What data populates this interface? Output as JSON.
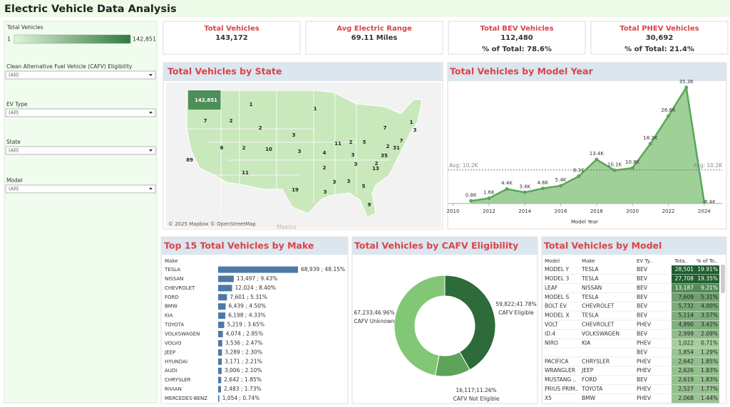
{
  "header": {
    "title": "Electric Vehicle Data Analysis"
  },
  "filters": {
    "slider": {
      "label": "Total Vehicles",
      "min": "1",
      "max": "142,851"
    },
    "dropdowns": [
      {
        "label": "Clean Alternative Fuel Vehicle (CAFV) Eligibility",
        "value": "(All)"
      },
      {
        "label": "EV Type",
        "value": "(All)"
      },
      {
        "label": "State",
        "value": "(All)"
      },
      {
        "label": "Model",
        "value": "(All)"
      }
    ]
  },
  "kpis": [
    {
      "title": "Total Vehicles",
      "value": "143,172"
    },
    {
      "title": "Avg Electric Range",
      "value": "69.11 Miles"
    },
    {
      "title": "Total BEV Vehicles",
      "value": "112,480",
      "sub": "% of Total: 78.6%"
    },
    {
      "title": "Total PHEV Vehicles",
      "value": "30,692",
      "sub": "% of Total: 21.4%"
    }
  ],
  "map": {
    "title": "Total Vehicles by State",
    "attribution": "© 2025 Mapbox © OpenStreetMap",
    "background_label": "Mexico",
    "state_labels": [
      "142,851",
      "1",
      "1",
      "7",
      "2",
      "2",
      "3",
      "7",
      "1",
      "3",
      "11",
      "2",
      "5",
      "6",
      "2",
      "10",
      "3",
      "4",
      "31",
      "35",
      "3",
      "89",
      "11",
      "3",
      "2",
      "13",
      "2",
      "19",
      "3",
      "5",
      "3",
      "3",
      "9",
      "2",
      "7"
    ]
  },
  "chart_data": [
    {
      "type": "area",
      "title": "Total Vehicles by Model Year",
      "x_label": "Model Year",
      "x": [
        2011,
        2012,
        2013,
        2014,
        2015,
        2016,
        2017,
        2018,
        2019,
        2020,
        2021,
        2022,
        2023,
        2024
      ],
      "values": [
        0.8,
        1.6,
        4.4,
        3.4,
        4.6,
        5.4,
        8.3,
        13.4,
        10.1,
        10.8,
        18.2,
        26.6,
        35.3,
        0.4
      ],
      "value_labels": [
        "0.8K",
        "1.6K",
        "4.4K",
        "3.4K",
        "4.6K",
        "5.4K",
        "8.3K",
        "13.4K",
        "10.1K",
        "10.8K",
        "18.2K",
        "26.6K",
        "35.3K",
        "0.4K"
      ],
      "color": "#5aa657",
      "xlim": [
        2009.7,
        2025
      ],
      "xticks": [
        2010,
        2012,
        2014,
        2016,
        2018,
        2020,
        2022,
        2024
      ],
      "reference_line": {
        "value": 10.2,
        "label": "Avg: 10.2K"
      }
    },
    {
      "type": "bar",
      "orientation": "horizontal",
      "title": "Top 15 Total Vehicles by Make",
      "category_label": "Make",
      "categories": [
        "TESLA",
        "NISSAN",
        "CHEVROLET",
        "FORD",
        "BMW",
        "KIA",
        "TOYOTA",
        "VOLKSWAGEN",
        "VOLVO",
        "JEEP",
        "HYUNDAI",
        "AUDI",
        "CHRYSLER",
        "RIVIAN",
        "MERCEDES-BENZ"
      ],
      "values": [
        68939,
        13497,
        12024,
        7601,
        6439,
        6198,
        5219,
        4074,
        3536,
        3289,
        3171,
        3006,
        2642,
        2483,
        1054
      ],
      "value_labels": [
        "68,939 ; 48.15%",
        "13,497 ; 9.43%",
        "12,024 ; 8.40%",
        "7,601 ; 5.31%",
        "6,439 ; 4.50%",
        "6,198 ; 4.33%",
        "5,219 ; 3.65%",
        "4,074 ; 2.85%",
        "3,536 ; 2.47%",
        "3,289 ; 2.30%",
        "3,171 ; 2.21%",
        "3,006 ; 2.10%",
        "2,642 ; 1.85%",
        "2,483 ; 1.73%",
        "1,054 ; 0.74%"
      ],
      "color": "#4e79a7"
    },
    {
      "type": "donut",
      "title": "Total Vehicles by CAFV Eligibility",
      "categories": [
        "CAFV Eligible",
        "CAFV Not Eligible",
        "CAFV Unknown"
      ],
      "values": [
        59822,
        16117,
        67233
      ],
      "value_labels": [
        "59,822;41.78%",
        "16,117;11.26%",
        "67,233;46.96%"
      ],
      "colors": [
        "#2d6b3a",
        "#5fa35a",
        "#82c775"
      ]
    }
  ],
  "table": {
    "title": "Total Vehicles by Model",
    "columns": [
      "Model",
      "Make",
      "EV Ty..",
      "Tota..",
      "% of To.."
    ],
    "rows": [
      [
        "MODEL Y",
        "TESLA",
        "BEV",
        "28,501",
        "19.91%"
      ],
      [
        "MODEL 3",
        "TESLA",
        "BEV",
        "27,708",
        "19.35%"
      ],
      [
        "LEAF",
        "NISSAN",
        "BEV",
        "13,187",
        "9.21%"
      ],
      [
        "MODEL S",
        "TESLA",
        "BEV",
        "7,609",
        "5.31%"
      ],
      [
        "BOLT EV",
        "CHEVROLET",
        "BEV",
        "5,732",
        "4.00%"
      ],
      [
        "MODEL X",
        "TESLA",
        "BEV",
        "5,114",
        "3.57%"
      ],
      [
        "VOLT",
        "CHEVROLET",
        "PHEV",
        "4,890",
        "3.42%"
      ],
      [
        "ID.4",
        "VOLKSWAGEN",
        "BEV",
        "2,999",
        "2.09%"
      ],
      [
        "NIRO",
        "KIA",
        "PHEV",
        "1,022",
        "0.71%"
      ],
      [
        null,
        null,
        "BEV",
        "1,854",
        "1.29%"
      ],
      [
        "PACIFICA",
        "CHRYSLER",
        "PHEV",
        "2,642",
        "1.85%"
      ],
      [
        "WRANGLER",
        "JEEP",
        "PHEV",
        "2,626",
        "1.83%"
      ],
      [
        "MUSTANG ..",
        "FORD",
        "BEV",
        "2,619",
        "1.83%"
      ],
      [
        "PRIUS PRIM..",
        "TOYOTA",
        "PHEV",
        "2,527",
        "1.77%"
      ],
      [
        "X5",
        "BMW",
        "PHEV",
        "2,068",
        "1.44%"
      ]
    ]
  }
}
